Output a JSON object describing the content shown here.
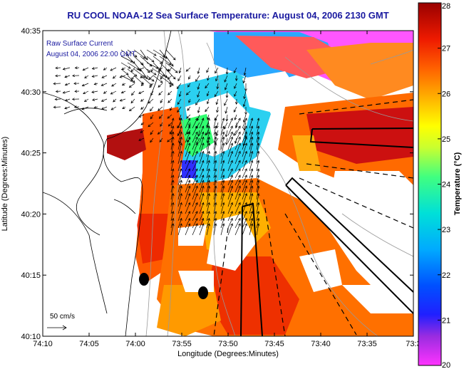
{
  "title": "RU COOL  NOAA-12  Sea Surface Temperature:  August 04, 2006 2130 GMT",
  "legend": {
    "line1": "Raw Surface Current",
    "line2": "August 04, 2006 22:00 GMT",
    "scale_label": "50 cm/s"
  },
  "axes": {
    "xlabel": "Longitude (Degrees:Minutes)",
    "ylabel": "Latitude (Degrees:Minutes)",
    "xticks": [
      "74:10",
      "74:05",
      "74:00",
      "73:55",
      "73:50",
      "73:45",
      "73:40",
      "73:35",
      "73:3"
    ],
    "yticks": [
      "40:35",
      "40:30",
      "40:25",
      "40:20",
      "40:15",
      "40:10"
    ]
  },
  "colorbar": {
    "title": "Temperature (°C)",
    "ticks": [
      "28",
      "27",
      "26",
      "25",
      "24",
      "23",
      "22",
      "21",
      "20"
    ],
    "min": 20,
    "max": 28
  },
  "colors": {
    "title": "#1a1aa0",
    "coast": "#000000",
    "contour": "#999999"
  }
}
